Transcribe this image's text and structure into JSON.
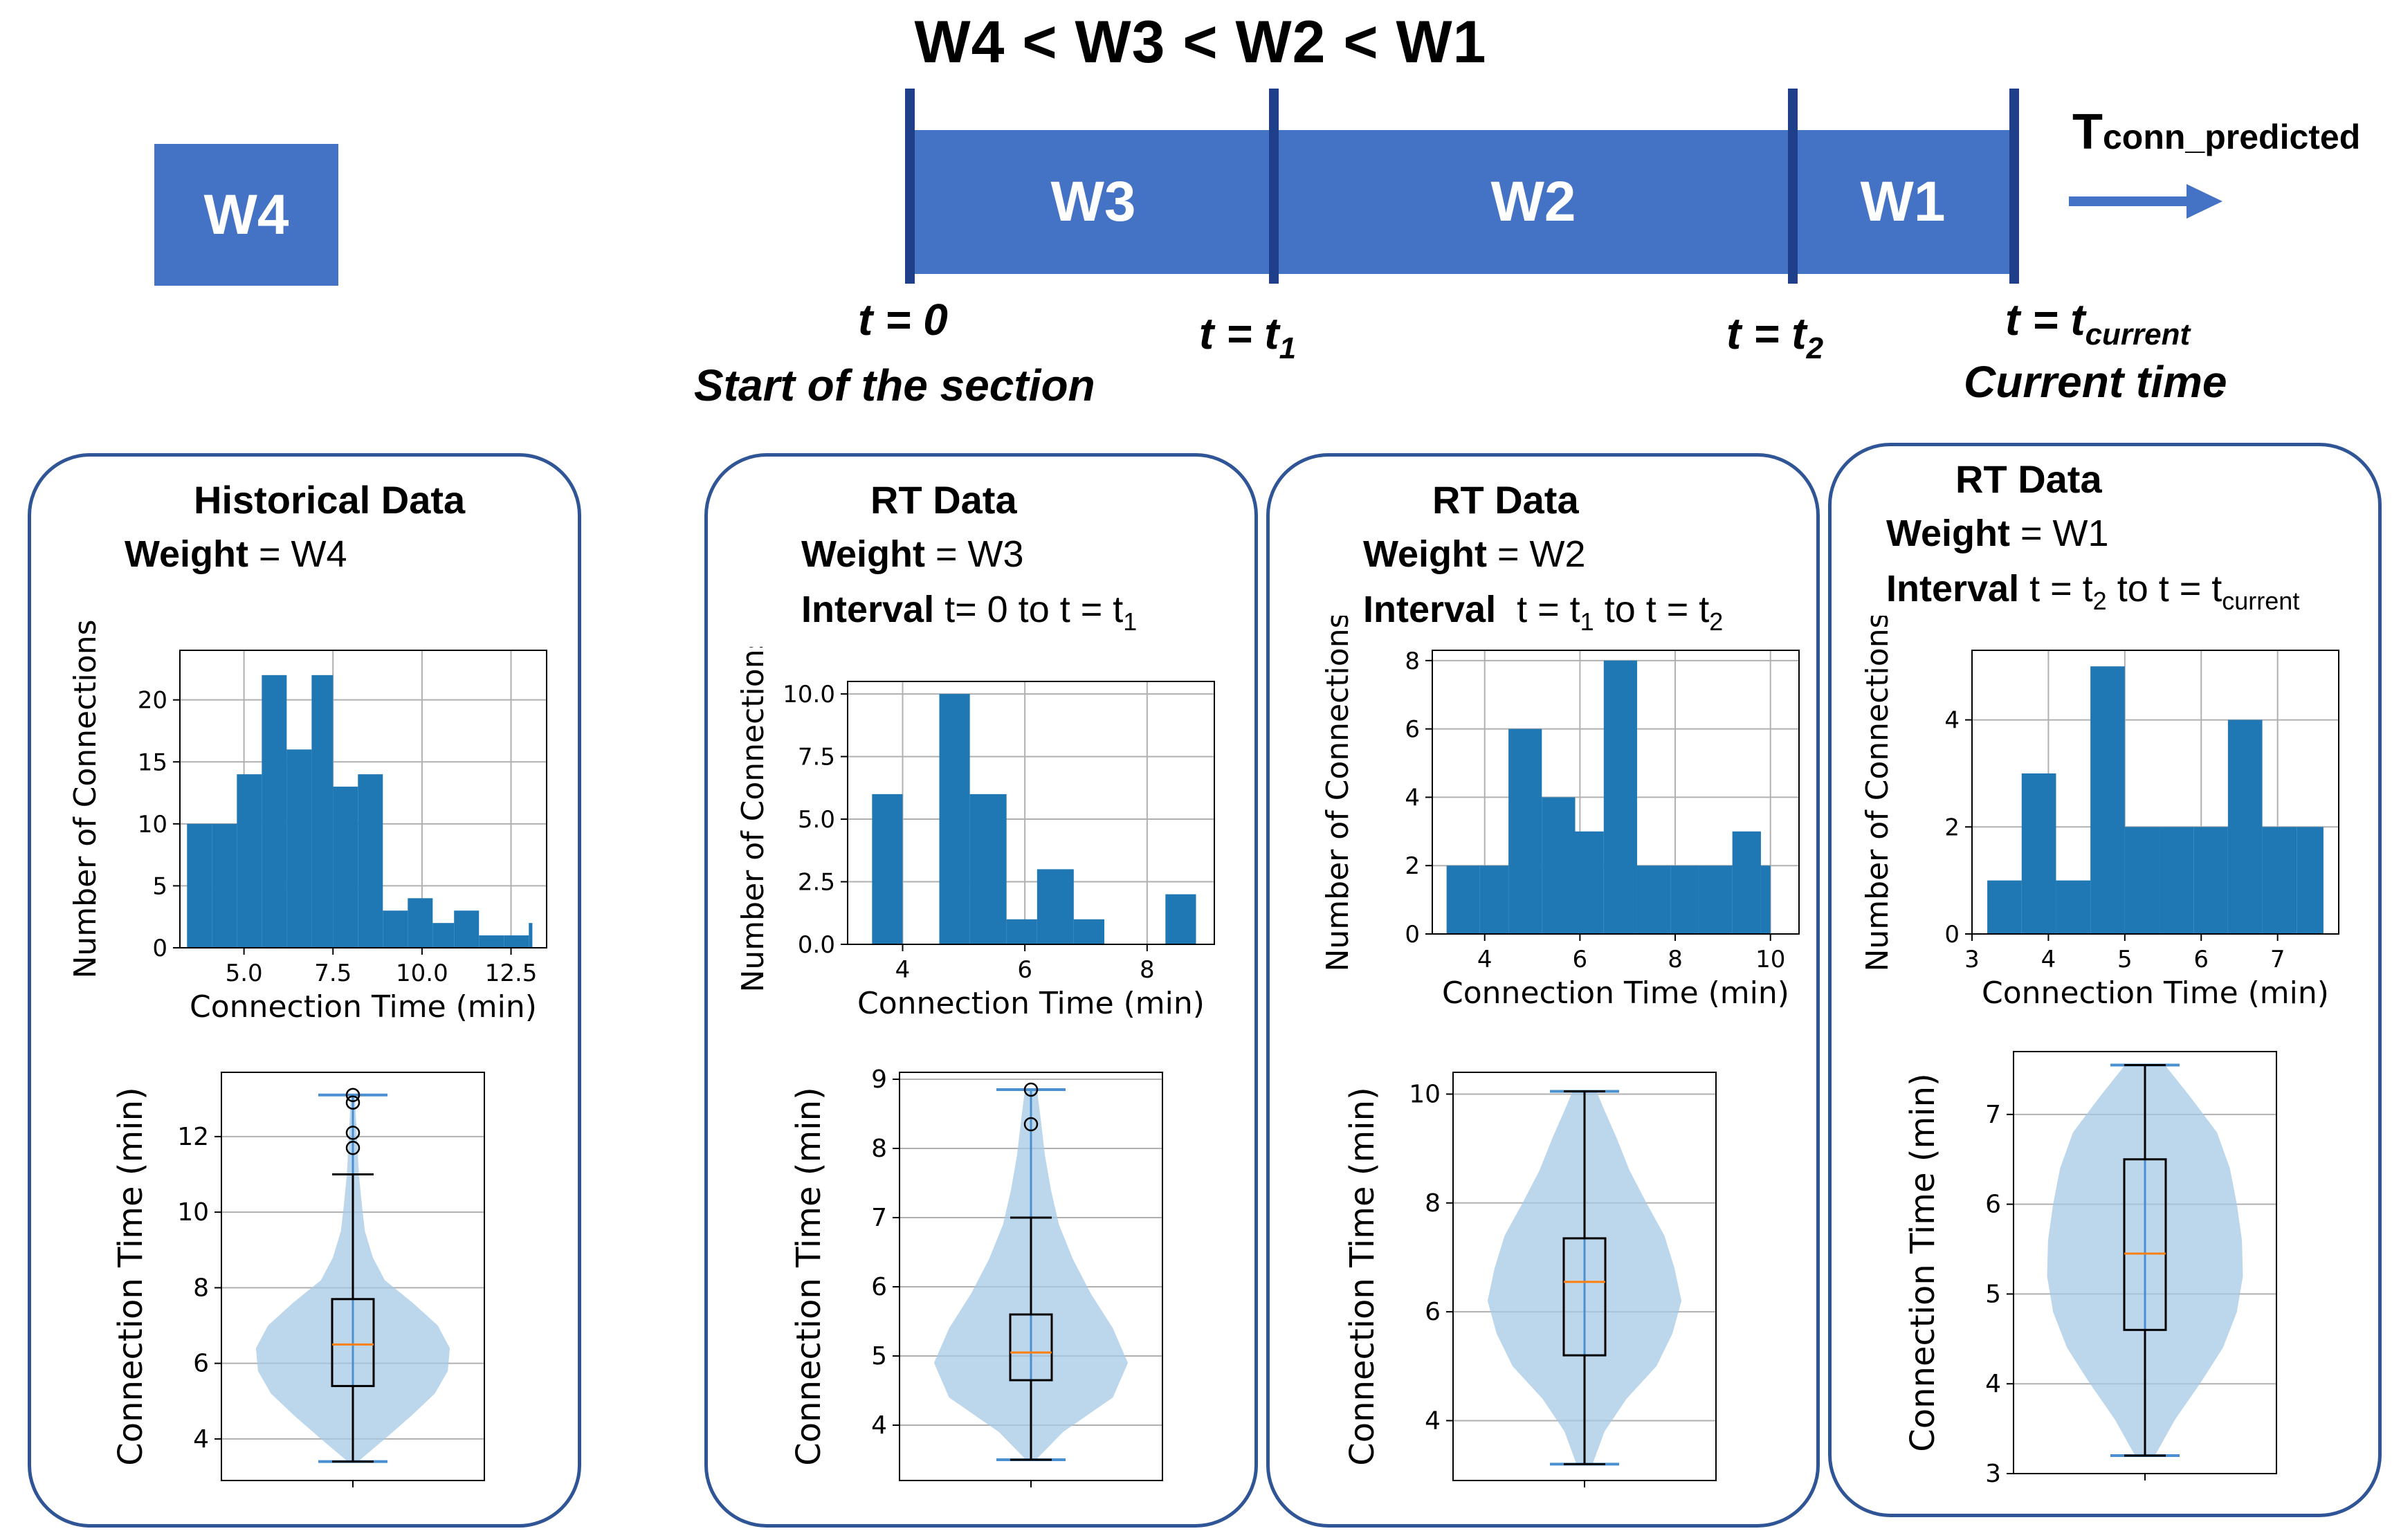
{
  "header": {
    "ordering": "W4 < W3 < W2 < W1",
    "w4_box": "W4",
    "segments": [
      {
        "label": "W3"
      },
      {
        "label": "W2"
      },
      {
        "label": "W1"
      }
    ],
    "predicted_main": "T",
    "predicted_sub": "conn_predicted",
    "time_markers": [
      {
        "eq": "t = ",
        "main": "0",
        "sub": "",
        "caption": "Start of the section"
      },
      {
        "eq": "t = ",
        "main": "t",
        "sub": "1",
        "caption": ""
      },
      {
        "eq": "t = ",
        "main": "t",
        "sub": "2",
        "caption": ""
      },
      {
        "eq": "t = ",
        "main": "t",
        "sub": "current",
        "caption": "Current time"
      }
    ]
  },
  "panels": [
    {
      "title": "Historical Data",
      "weight_label": "Weight",
      "weight_value": "= W4",
      "interval_label": "",
      "interval_text": "",
      "hist": {
        "xlabel": "Connection Time (min)",
        "ylabel": "Number of Connections",
        "xlim": [
          3.2,
          13.5
        ],
        "ylim": [
          0,
          24
        ],
        "xticks": [
          5.0,
          7.5,
          10.0,
          12.5
        ],
        "xtick_labels": [
          "5.0",
          "7.5",
          "10.0",
          "12.5"
        ],
        "yticks": [
          0,
          5,
          10,
          15,
          20
        ],
        "ytick_labels": [
          "0",
          "5",
          "10",
          "15",
          "20"
        ],
        "bins": [
          [
            3.4,
            4.1,
            10
          ],
          [
            4.1,
            4.8,
            10
          ],
          [
            4.8,
            5.5,
            14
          ],
          [
            5.5,
            6.2,
            22
          ],
          [
            6.2,
            6.9,
            16
          ],
          [
            6.9,
            7.5,
            22
          ],
          [
            7.5,
            8.2,
            13
          ],
          [
            8.2,
            8.9,
            14
          ],
          [
            8.9,
            9.6,
            3
          ],
          [
            9.6,
            10.3,
            4
          ],
          [
            10.3,
            10.9,
            2
          ],
          [
            10.9,
            11.6,
            3
          ],
          [
            11.6,
            12.3,
            1
          ],
          [
            12.3,
            13.0,
            1
          ],
          [
            13.0,
            13.1,
            2
          ]
        ]
      },
      "violin": {
        "ylabel": "Connection Time (min)",
        "ylim": [
          2.9,
          13.7
        ],
        "yticks": [
          4,
          6,
          8,
          10,
          12
        ],
        "ytick_labels": [
          "4",
          "6",
          "8",
          "10",
          "12"
        ],
        "min": 3.4,
        "max": 13.1,
        "q1": 5.4,
        "median": 6.5,
        "q3": 7.7,
        "whisker_hi": 11.0,
        "outliers": [
          11.7,
          12.1,
          12.9,
          13.1
        ],
        "density": [
          [
            3.4,
            0.05
          ],
          [
            4.0,
            0.32
          ],
          [
            4.6,
            0.58
          ],
          [
            5.2,
            0.82
          ],
          [
            5.8,
            0.95
          ],
          [
            6.4,
            0.97
          ],
          [
            7.0,
            0.85
          ],
          [
            7.6,
            0.6
          ],
          [
            8.2,
            0.32
          ],
          [
            8.8,
            0.2
          ],
          [
            9.5,
            0.12
          ],
          [
            10.2,
            0.09
          ],
          [
            11.0,
            0.06
          ],
          [
            12.0,
            0.04
          ],
          [
            13.1,
            0.02
          ]
        ]
      }
    },
    {
      "title": "RT Data",
      "weight_label": "Weight",
      "weight_value": "= W3",
      "interval_label": "Interval",
      "interval_text": "t= 0 to t = t",
      "interval_sub1": "1",
      "interval_mid": "",
      "interval_sub2": "",
      "hist": {
        "xlabel": "Connection Time (min)",
        "ylabel": "Number of Connections",
        "xlim": [
          3.1,
          9.1
        ],
        "ylim": [
          0,
          10.5
        ],
        "xticks": [
          4,
          6,
          8
        ],
        "xtick_labels": [
          "4",
          "6",
          "8"
        ],
        "yticks": [
          0,
          2.5,
          5,
          7.5,
          10
        ],
        "ytick_labels": [
          "0.0",
          "2.5",
          "5.0",
          "7.5",
          "10.0"
        ],
        "bins": [
          [
            3.5,
            4.0,
            6
          ],
          [
            4.0,
            4.6,
            0
          ],
          [
            4.6,
            5.1,
            10
          ],
          [
            5.1,
            5.7,
            6
          ],
          [
            5.7,
            6.2,
            1
          ],
          [
            6.2,
            6.8,
            3
          ],
          [
            6.8,
            7.3,
            1
          ],
          [
            7.3,
            8.3,
            0
          ],
          [
            8.3,
            8.8,
            2
          ]
        ]
      },
      "violin": {
        "ylabel": "Connection Time (min)",
        "ylim": [
          3.2,
          9.1
        ],
        "yticks": [
          4,
          5,
          6,
          7,
          8,
          9
        ],
        "ytick_labels": [
          "4",
          "5",
          "6",
          "7",
          "8",
          "9"
        ],
        "min": 3.5,
        "max": 8.85,
        "q1": 4.65,
        "median": 5.05,
        "q3": 5.6,
        "whisker_hi": 7.0,
        "outliers": [
          8.35,
          8.85
        ],
        "density": [
          [
            3.5,
            0.05
          ],
          [
            3.9,
            0.32
          ],
          [
            4.4,
            0.82
          ],
          [
            4.9,
            0.97
          ],
          [
            5.4,
            0.82
          ],
          [
            5.9,
            0.6
          ],
          [
            6.4,
            0.42
          ],
          [
            6.9,
            0.28
          ],
          [
            7.4,
            0.2
          ],
          [
            7.9,
            0.14
          ],
          [
            8.4,
            0.1
          ],
          [
            8.85,
            0.06
          ]
        ]
      }
    },
    {
      "title": "RT Data",
      "weight_label": "Weight",
      "weight_value": "= W2",
      "interval_label": "Interval",
      "interval_text": "t = t",
      "interval_sub1": "1",
      "interval_mid": " to t = t",
      "interval_sub2": "2",
      "hist": {
        "xlabel": "Connection Time (min)",
        "ylabel": "Number of Connections",
        "xlim": [
          2.9,
          10.6
        ],
        "ylim": [
          0,
          8.3
        ],
        "xticks": [
          4,
          6,
          8,
          10
        ],
        "xtick_labels": [
          "4",
          "6",
          "8",
          "10"
        ],
        "yticks": [
          0,
          2,
          4,
          6,
          8
        ],
        "ytick_labels": [
          "0",
          "2",
          "4",
          "6",
          "8"
        ],
        "bins": [
          [
            3.2,
            3.9,
            2
          ],
          [
            3.9,
            4.5,
            2
          ],
          [
            4.5,
            5.2,
            6
          ],
          [
            5.2,
            5.9,
            4
          ],
          [
            5.9,
            6.5,
            3
          ],
          [
            6.5,
            7.2,
            8
          ],
          [
            7.2,
            7.9,
            2
          ],
          [
            7.9,
            8.5,
            2
          ],
          [
            8.5,
            9.2,
            2
          ],
          [
            9.2,
            9.8,
            3
          ],
          [
            9.8,
            10.0,
            2
          ]
        ]
      },
      "violin": {
        "ylabel": "Connection Time (min)",
        "ylim": [
          2.9,
          10.4
        ],
        "yticks": [
          4,
          6,
          8,
          10
        ],
        "ytick_labels": [
          "4",
          "6",
          "8",
          "10"
        ],
        "min": 3.2,
        "max": 10.05,
        "q1": 5.2,
        "median": 6.55,
        "q3": 7.35,
        "whisker_hi": 10.05,
        "outliers": [],
        "density": [
          [
            3.2,
            0.08
          ],
          [
            3.8,
            0.2
          ],
          [
            4.4,
            0.42
          ],
          [
            5.0,
            0.72
          ],
          [
            5.6,
            0.88
          ],
          [
            6.2,
            0.97
          ],
          [
            6.8,
            0.9
          ],
          [
            7.4,
            0.8
          ],
          [
            8.0,
            0.62
          ],
          [
            8.6,
            0.45
          ],
          [
            9.2,
            0.32
          ],
          [
            9.7,
            0.2
          ],
          [
            10.05,
            0.12
          ]
        ]
      }
    },
    {
      "title": "RT Data",
      "weight_label": "Weight",
      "weight_value": "= W1",
      "interval_label": "Interval",
      "interval_text": "t = t",
      "interval_sub1": "2",
      "interval_mid": " to t = t",
      "interval_sub2": "current",
      "hist": {
        "xlabel": "Connection Time (min)",
        "ylabel": "Number of Connections",
        "xlim": [
          3.0,
          7.8
        ],
        "ylim": [
          0,
          5.3
        ],
        "xticks": [
          3,
          4,
          5,
          6,
          7
        ],
        "xtick_labels": [
          "3",
          "4",
          "5",
          "6",
          "7"
        ],
        "yticks": [
          0,
          2,
          4
        ],
        "ytick_labels": [
          "0",
          "2",
          "4"
        ],
        "bins": [
          [
            3.2,
            3.65,
            1
          ],
          [
            3.65,
            4.1,
            3
          ],
          [
            4.1,
            4.55,
            1
          ],
          [
            4.55,
            5.0,
            5
          ],
          [
            5.0,
            5.45,
            2
          ],
          [
            5.45,
            5.9,
            2
          ],
          [
            5.9,
            6.35,
            2
          ],
          [
            6.35,
            6.8,
            4
          ],
          [
            6.8,
            7.25,
            2
          ],
          [
            7.25,
            7.6,
            2
          ]
        ]
      },
      "violin": {
        "ylabel": "Connection Time (min)",
        "ylim": [
          3.0,
          7.7
        ],
        "yticks": [
          3,
          4,
          5,
          6,
          7
        ],
        "ytick_labels": [
          "3",
          "4",
          "5",
          "6",
          "7"
        ],
        "min": 3.2,
        "max": 7.55,
        "q1": 4.6,
        "median": 5.45,
        "q3": 6.5,
        "whisker_hi": 7.55,
        "outliers": [],
        "density": [
          [
            3.2,
            0.1
          ],
          [
            3.6,
            0.3
          ],
          [
            4.0,
            0.55
          ],
          [
            4.4,
            0.78
          ],
          [
            4.8,
            0.92
          ],
          [
            5.2,
            0.98
          ],
          [
            5.6,
            0.97
          ],
          [
            6.0,
            0.92
          ],
          [
            6.4,
            0.85
          ],
          [
            6.8,
            0.72
          ],
          [
            7.2,
            0.45
          ],
          [
            7.55,
            0.2
          ]
        ]
      }
    }
  ],
  "colors": {
    "accent": "#4472c4",
    "dark": "#1f3f8a",
    "panel_border": "#2f5597",
    "bar": "#1f77b4",
    "violin": "#a6c8e6",
    "median": "#ff7f0e"
  }
}
